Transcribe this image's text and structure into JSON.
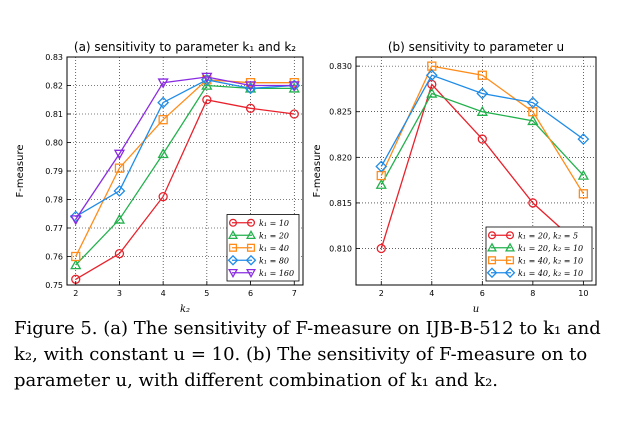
{
  "chart_data": [
    {
      "type": "line",
      "title": "(a) sensitivity to parameter k₁ and k₂",
      "xlabel": "k₂",
      "ylabel": "F-measure",
      "x": [
        2,
        3,
        4,
        5,
        6,
        7
      ],
      "xticks": [
        "2",
        "3",
        "4",
        "5",
        "6",
        "7"
      ],
      "yticks": [
        "0.75",
        "0.76",
        "0.77",
        "0.78",
        "0.79",
        "0.80",
        "0.81",
        "0.82",
        "0.83"
      ],
      "xlim": [
        1.8,
        7.2
      ],
      "ylim": [
        0.75,
        0.83
      ],
      "grid": true,
      "legend": "lower-right",
      "series": [
        {
          "name": "k₁ = 10",
          "color": "#e8222c",
          "marker": "circle",
          "values": [
            0.752,
            0.761,
            0.781,
            0.815,
            0.812,
            0.81
          ]
        },
        {
          "name": "k₁ = 20",
          "color": "#23b14d",
          "marker": "triangle-up",
          "values": [
            0.757,
            0.773,
            0.796,
            0.82,
            0.819,
            0.819
          ]
        },
        {
          "name": "k₁ = 40",
          "color": "#ff8c1a",
          "marker": "square",
          "values": [
            0.76,
            0.791,
            0.808,
            0.822,
            0.821,
            0.821
          ]
        },
        {
          "name": "k₁ = 80",
          "color": "#1f8ce8",
          "marker": "diamond",
          "values": [
            0.774,
            0.783,
            0.814,
            0.822,
            0.819,
            0.82
          ]
        },
        {
          "name": "k₁ = 160",
          "color": "#8a2be2",
          "marker": "triangle-down",
          "values": [
            0.773,
            0.796,
            0.821,
            0.823,
            0.82,
            0.82
          ]
        }
      ]
    },
    {
      "type": "line",
      "title": "(b) sensitivity to parameter u",
      "xlabel": "u",
      "ylabel": "F-measure",
      "x": [
        2,
        4,
        6,
        8,
        10
      ],
      "xticks": [
        "2",
        "4",
        "6",
        "8",
        "10"
      ],
      "yticks": [
        "0.810",
        "0.815",
        "0.820",
        "0.825",
        "0.830"
      ],
      "xlim": [
        1,
        10.5
      ],
      "ylim": [
        0.806,
        0.831
      ],
      "grid": true,
      "legend": "lower-right",
      "series": [
        {
          "name": "k₁ = 20, k₂ = 5",
          "color": "#e8222c",
          "marker": "circle",
          "values": [
            0.81,
            0.828,
            0.822,
            0.815,
            0.81
          ]
        },
        {
          "name": "k₁ = 20, k₂ = 10",
          "color": "#23b14d",
          "marker": "triangle-up",
          "values": [
            0.817,
            0.827,
            0.825,
            0.824,
            0.818
          ]
        },
        {
          "name": "k₁ = 40, k₂ = 10",
          "color": "#ff8c1a",
          "marker": "square",
          "values": [
            0.818,
            0.83,
            0.829,
            0.825,
            0.816
          ]
        },
        {
          "name": "k₁ = 40, k₂ = 10",
          "color": "#1f8ce8",
          "marker": "diamond",
          "values": [
            0.819,
            0.829,
            0.827,
            0.826,
            0.822
          ]
        }
      ]
    }
  ],
  "caption": {
    "lines": [
      "Figure 5. (a) The sensitivity of F-measure on IJB-B-512 to k₁ and",
      "k₂, with constant u = 10. (b) The sensitivity of F-measure on to",
      "parameter u, with different combination of k₁ and k₂."
    ]
  }
}
